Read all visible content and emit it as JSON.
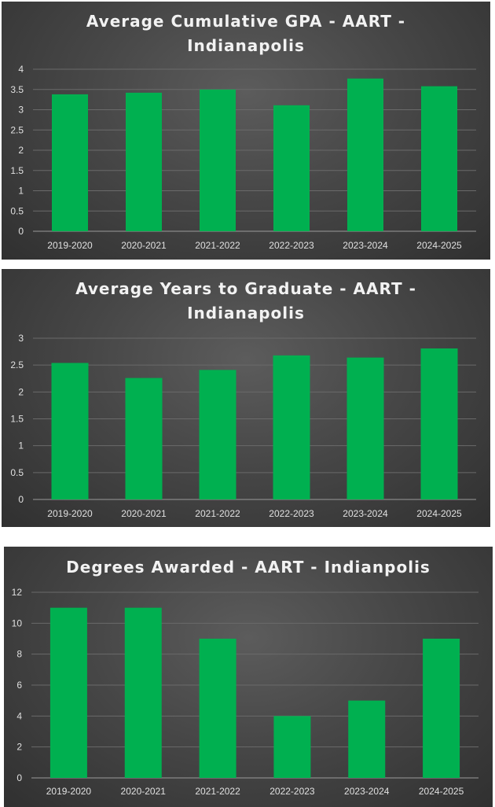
{
  "chart_data": [
    {
      "type": "bar",
      "title_lines": [
        "Average Cumulative GPA - AART -",
        "Indianapolis"
      ],
      "categories": [
        "2019-2020",
        "2020-2021",
        "2021-2022",
        "2022-2023",
        "2023-2024",
        "2024-2025"
      ],
      "values": [
        3.38,
        3.42,
        3.5,
        3.11,
        3.77,
        3.58
      ],
      "yticks": [
        "0",
        "0.5",
        "1",
        "1.5",
        "2",
        "2.5",
        "3",
        "3.5",
        "4"
      ],
      "ylim": [
        0,
        4
      ],
      "bar_color": "#00b050",
      "grid": true,
      "legend": "none"
    },
    {
      "type": "bar",
      "title_lines": [
        "Average Years to Graduate - AART -",
        "Indianapolis"
      ],
      "categories": [
        "2019-2020",
        "2020-2021",
        "2021-2022",
        "2022-2023",
        "2023-2024",
        "2024-2025"
      ],
      "values": [
        2.54,
        2.26,
        2.41,
        2.68,
        2.64,
        2.81
      ],
      "yticks": [
        "0",
        "0.5",
        "1",
        "1.5",
        "2",
        "2.5",
        "3"
      ],
      "ylim": [
        0,
        3
      ],
      "bar_color": "#00b050",
      "grid": true,
      "legend": "none"
    },
    {
      "type": "bar",
      "title_lines": [
        "Degrees Awarded - AART - Indianpolis"
      ],
      "categories": [
        "2019-2020",
        "2020-2021",
        "2021-2022",
        "2022-2023",
        "2023-2024",
        "2024-2025"
      ],
      "values": [
        11,
        11,
        9,
        4,
        5,
        9
      ],
      "yticks": [
        "0",
        "2",
        "4",
        "6",
        "8",
        "10",
        "12"
      ],
      "ylim": [
        0,
        12
      ],
      "bar_color": "#00b050",
      "grid": true,
      "legend": "none"
    }
  ]
}
